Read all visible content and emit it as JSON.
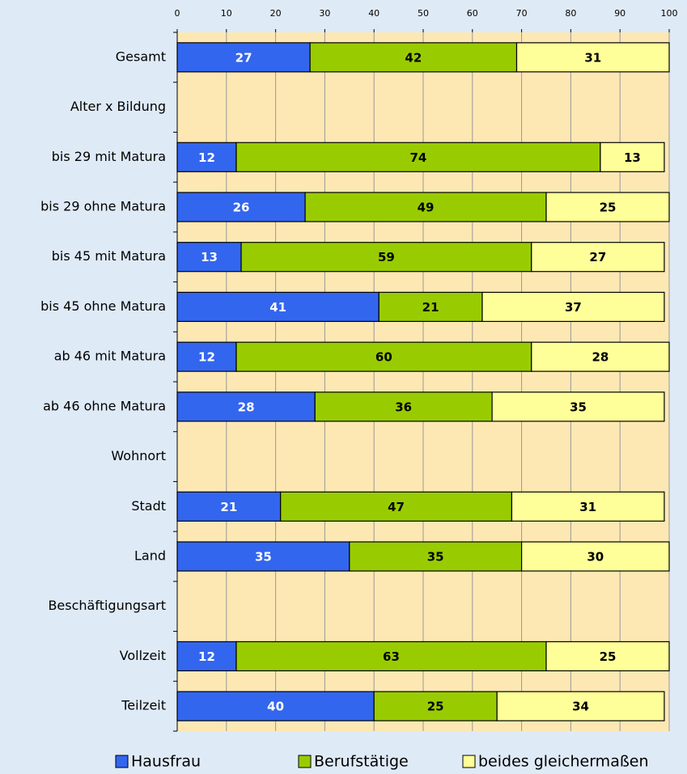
{
  "chart_data": {
    "type": "stacked_barh",
    "categories": [
      "Gesamt",
      "Alter x Bildung",
      "bis 29 mit Matura",
      "bis 29 ohne Matura",
      "bis 45 mit Matura",
      "bis 45 ohne Matura",
      "ab 46 mit Matura",
      "ab 46 ohne Matura",
      "Wohnort",
      "Stadt",
      "Land",
      "Beschäftigungsart",
      "Vollzeit",
      "Teilzeit"
    ],
    "series": [
      {
        "name": "Hausfrau",
        "color": "#3366ee",
        "values": [
          27,
          null,
          12,
          26,
          13,
          41,
          12,
          28,
          null,
          21,
          35,
          null,
          12,
          40
        ]
      },
      {
        "name": "Berufstätige",
        "color": "#99cc00",
        "values": [
          42,
          null,
          74,
          49,
          59,
          21,
          60,
          36,
          null,
          47,
          35,
          null,
          63,
          25
        ]
      },
      {
        "name": "beides gleichermaßen",
        "color": "#ffff99",
        "values": [
          31,
          null,
          13,
          25,
          27,
          37,
          28,
          35,
          null,
          31,
          30,
          null,
          25,
          34
        ]
      }
    ],
    "xlim": [
      0,
      100
    ],
    "xticks": [
      0,
      10,
      20,
      30,
      40,
      50,
      60,
      70,
      80,
      90,
      100
    ],
    "grid": true,
    "legend": "bottom"
  }
}
